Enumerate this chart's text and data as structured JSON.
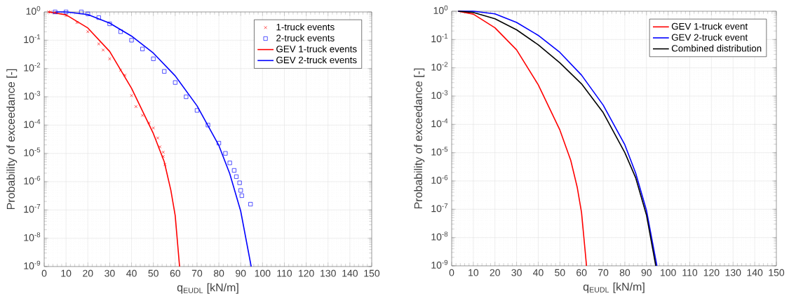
{
  "chart_data": [
    {
      "type": "line",
      "xlabel": "q$_{EUDL}$ [kN/m]",
      "ylabel": "Probability of exceedance [-]",
      "log": "y",
      "grid": true,
      "legend": "top right",
      "xlim": [
        0,
        150
      ],
      "ylim": [
        1e-09,
        1
      ],
      "xticks": [
        0,
        10,
        20,
        30,
        40,
        50,
        60,
        70,
        80,
        90,
        100,
        110,
        120,
        130,
        140,
        150
      ],
      "yticks": [
        {
          "value": 1e-09,
          "label": "10$^{-9}$"
        },
        {
          "value": 1e-08,
          "label": "10$^{-8}$"
        },
        {
          "value": 1e-07,
          "label": "10$^{-7}$"
        },
        {
          "value": 1e-06,
          "label": "10$^{-6}$"
        },
        {
          "value": 1e-05,
          "label": "10$^{-5}$"
        },
        {
          "value": 0.0001,
          "label": "10$^{-4}$"
        },
        {
          "value": 0.001,
          "label": "10$^{-3}$"
        },
        {
          "value": 0.01,
          "label": "10$^{-2}$"
        },
        {
          "value": 0.1,
          "label": "10$^{-1}$"
        },
        {
          "value": 1,
          "label": "10$^{0}$"
        }
      ],
      "series": [
        {
          "name": "1-truck events",
          "type": "scatter",
          "marker": "cross",
          "color": "#ff0000",
          "x": [
            2,
            3,
            5,
            10,
            15,
            20,
            25,
            27,
            30,
            35,
            37,
            40,
            42,
            45,
            48,
            50,
            52,
            53,
            54.5,
            54.5,
            55.3
          ],
          "values": [
            1,
            1,
            0.95,
            0.74,
            0.42,
            0.2,
            0.074,
            0.045,
            0.022,
            0.0087,
            0.0058,
            0.0011,
            0.00045,
            0.00022,
            0.00012,
            7.9e-05,
            3.5e-05,
            1.7e-05,
            1.1e-05,
            7.8e-06,
            4e-06
          ]
        },
        {
          "name": "2-truck events",
          "type": "scatter",
          "marker": "square",
          "color": "#0000ff",
          "x": [
            5,
            10,
            17,
            20,
            25,
            30,
            35,
            40,
            45,
            50,
            55,
            60,
            65,
            70,
            75,
            80,
            83,
            85,
            87,
            88,
            89.5,
            90,
            90.5,
            94.5
          ],
          "values": [
            1,
            1,
            1,
            0.85,
            0.63,
            0.38,
            0.2,
            0.1,
            0.049,
            0.022,
            0.0079,
            0.0032,
            0.001,
            0.00033,
            0.0001,
            2.3e-05,
            1e-05,
            4.6e-06,
            2.5e-06,
            1.5e-06,
            9.1e-07,
            4.9e-07,
            3.2e-07,
            1.6e-07
          ]
        },
        {
          "name": "GEV 1-truck events",
          "type": "line",
          "color": "#ff0000",
          "x": [
            2,
            10,
            20,
            30,
            40,
            50,
            55,
            58,
            60,
            62
          ],
          "values": [
            1,
            0.79,
            0.27,
            0.04,
            0.002,
            5e-05,
            5e-06,
            5e-07,
            6.3e-08,
            1e-09
          ]
        },
        {
          "name": "GEV 2-truck events",
          "type": "line",
          "color": "#0000ff",
          "x": [
            5,
            10,
            20,
            30,
            40,
            50,
            60,
            70,
            80,
            85,
            90,
            94.8
          ],
          "values": [
            1,
            1,
            0.81,
            0.4,
            0.14,
            0.035,
            0.0055,
            0.00048,
            1.9e-05,
            1.9e-06,
            9.1e-08,
            1e-09
          ]
        }
      ]
    },
    {
      "type": "line",
      "xlabel": "q$_{EUDL}$ [kN/m]",
      "ylabel": "Probability of exceedance [-]",
      "log": "y",
      "grid": true,
      "legend": "top right",
      "xlim": [
        0,
        150
      ],
      "ylim": [
        1e-09,
        1
      ],
      "xticks": [
        0,
        10,
        20,
        30,
        40,
        50,
        60,
        70,
        80,
        90,
        100,
        110,
        120,
        130,
        140,
        150
      ],
      "yticks": [
        {
          "value": 1e-09,
          "label": "10$^{-9}$"
        },
        {
          "value": 1e-08,
          "label": "10$^{-8}$"
        },
        {
          "value": 1e-07,
          "label": "10$^{-7}$"
        },
        {
          "value": 1e-06,
          "label": "10$^{-6}$"
        },
        {
          "value": 1e-05,
          "label": "10$^{-5}$"
        },
        {
          "value": 0.0001,
          "label": "10$^{-4}$"
        },
        {
          "value": 0.001,
          "label": "10$^{-3}$"
        },
        {
          "value": 0.01,
          "label": "10$^{-2}$"
        },
        {
          "value": 0.1,
          "label": "10$^{-1}$"
        },
        {
          "value": 1,
          "label": "10$^{0}$"
        }
      ],
      "series": [
        {
          "name": "GEV 1-truck event",
          "color": "#ff0000",
          "x": [
            3,
            10,
            20,
            30,
            40,
            50,
            55,
            58,
            60,
            62.3
          ],
          "values": [
            1,
            0.79,
            0.26,
            0.043,
            0.0025,
            6.3e-05,
            5.4e-06,
            6e-07,
            7.6e-08,
            1e-09
          ]
        },
        {
          "name": "GEV 2-truck event",
          "color": "#0000ff",
          "x": [
            3,
            10,
            20,
            30,
            40,
            50,
            60,
            70,
            80,
            85,
            90,
            94.8
          ],
          "values": [
            1,
            1,
            0.81,
            0.4,
            0.14,
            0.035,
            0.0055,
            0.00048,
            1.9e-05,
            1.9e-06,
            9.1e-08,
            1e-09
          ]
        },
        {
          "name": "Combined distribution",
          "color": "#000000",
          "x": [
            3,
            10,
            20,
            30,
            40,
            50,
            60,
            70,
            80,
            85,
            90,
            94.3
          ],
          "values": [
            1,
            0.91,
            0.54,
            0.22,
            0.065,
            0.015,
            0.0027,
            0.00026,
            1e-05,
            1.3e-06,
            6.2e-08,
            1e-09
          ]
        }
      ]
    }
  ]
}
